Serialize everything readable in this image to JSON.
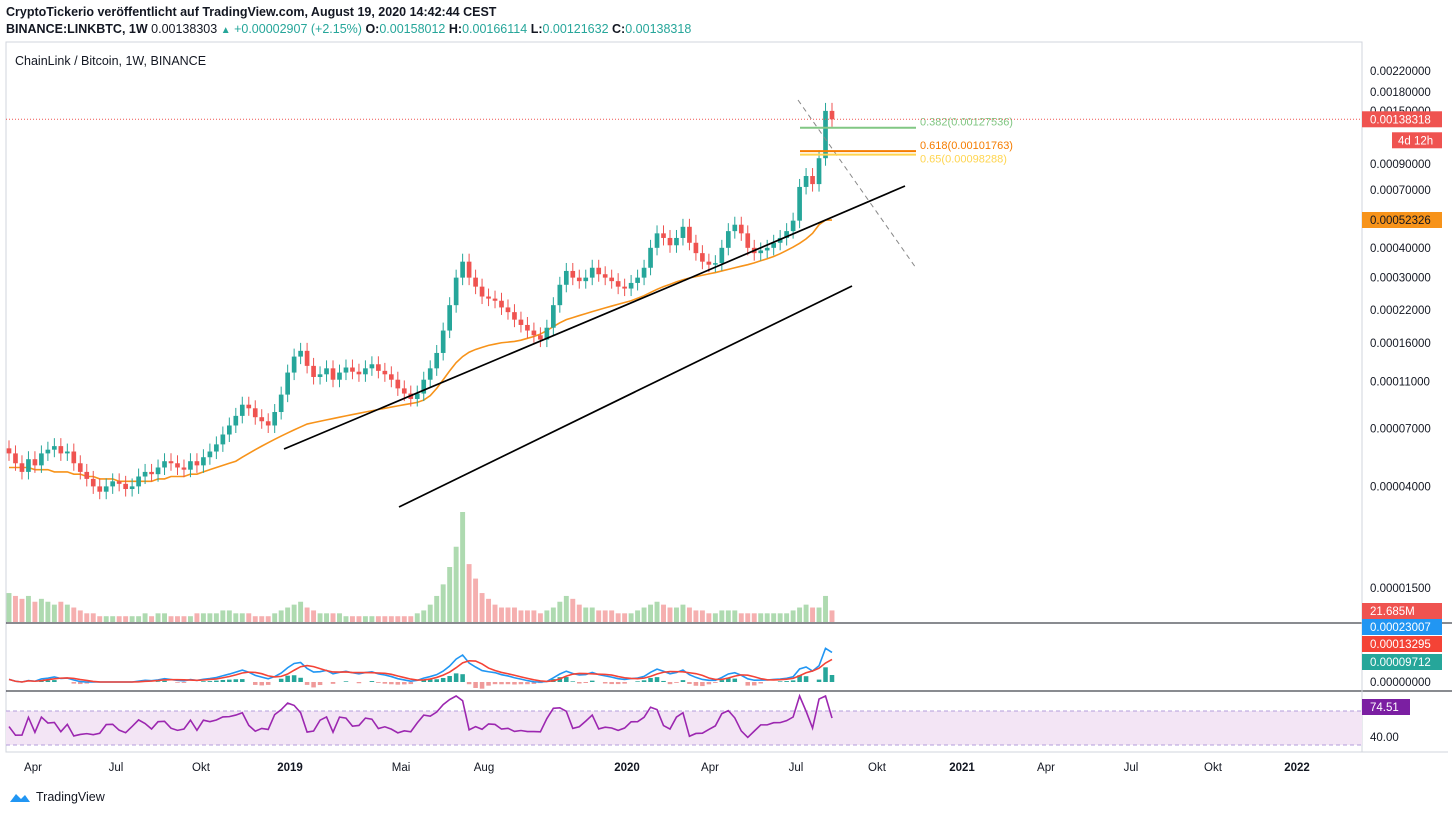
{
  "header": {
    "line1": "CryptoTickerio veröffentlicht auf TradingView.com, August 19, 2020 14:42:44 CEST",
    "symbol": "BINANCE:LINKBTC, 1W",
    "price": "0.00138303",
    "change": "+0.00002907 (+2.15%)",
    "o_label": "O:",
    "o": "0.00158012",
    "h_label": "H:",
    "h": "0.00166114",
    "l_label": "L:",
    "l": "0.00121632",
    "c_label": "C:",
    "c": "0.00138318"
  },
  "footer": {
    "brand": "TradingView"
  },
  "colors": {
    "up": "#26a69a",
    "down": "#ef5350",
    "ma": "#f7931a",
    "macd": "#2196f3",
    "signal": "#f44336",
    "rsi": "#9c27b0"
  },
  "chart_data": {
    "type": "candlestick",
    "title": "ChainLink / Bitcoin, 1W, BINANCE",
    "scale": "log",
    "price_ticks": [
      "0.00220000",
      "0.00180000",
      "0.00150000",
      "0.00090000",
      "0.00070000",
      "0.00040000",
      "0.00030000",
      "0.00022000",
      "0.00016000",
      "0.00011000",
      "0.00007000",
      "0.00004000",
      "0.00001500"
    ],
    "x_ticks": [
      "Apr",
      "Jul",
      "Okt",
      "2019",
      "Mai",
      "Aug",
      "2020",
      "Apr",
      "Jul",
      "Okt",
      "2021",
      "Apr",
      "Jul",
      "Okt",
      "2022"
    ],
    "last_price_label": "0.00138318",
    "countdown": "4d 12h",
    "ma_label": "0.00052326",
    "volume_label": "21.685M",
    "fib": [
      {
        "label": "0.382(0.00127536)",
        "value": 0.00127536,
        "color": "#81c784"
      },
      {
        "label": "0.618(0.00101763)",
        "value": 0.00101763,
        "color": "#f57c00"
      },
      {
        "label": "0.65(0.00098288)",
        "value": 0.00098288,
        "color": "#ffd54f"
      }
    ],
    "close": [
      5.5e-05,
      5e-05,
      4.6e-05,
      5.2e-05,
      4.9e-05,
      5.5e-05,
      5.7e-05,
      5.9e-05,
      5.5e-05,
      5.6e-05,
      5e-05,
      4.6e-05,
      4.3e-05,
      4e-05,
      3.8e-05,
      4e-05,
      4.2e-05,
      4.1e-05,
      3.9e-05,
      4e-05,
      4.4e-05,
      4.6e-05,
      4.5e-05,
      4.8e-05,
      5.1e-05,
      5e-05,
      4.8e-05,
      4.7e-05,
      5.1e-05,
      4.9e-05,
      5.3e-05,
      5.6e-05,
      6e-05,
      6.6e-05,
      7.2e-05,
      7.9e-05,
      8.8e-05,
      8.5e-05,
      7.8e-05,
      7.5e-05,
      7.2e-05,
      8.2e-05,
      9.7e-05,
      0.00012,
      0.00014,
      0.000148,
      0.000128,
      0.000115,
      0.000118,
      0.000125,
      0.000112,
      0.00012,
      0.000126,
      0.000121,
      0.000118,
      0.000125,
      0.00013,
      0.000122,
      0.000118,
      0.000112,
      0.000103,
      9.8e-05,
      9.3e-05,
      9.8e-05,
      0.000112,
      0.000125,
      0.000145,
      0.00018,
      0.00023,
      0.0003,
      0.00035,
      0.0003,
      0.000275,
      0.00025,
      0.000245,
      0.00024,
      0.000225,
      0.000215,
      0.0002,
      0.00019,
      0.00018,
      0.000172,
      0.000165,
      0.000185,
      0.00023,
      0.00028,
      0.00032,
      0.0003,
      0.00029,
      0.0003,
      0.00033,
      0.00031,
      0.0003,
      0.00029,
      0.000275,
      0.00027,
      0.000285,
      0.0003,
      0.00033,
      0.0004,
      0.00046,
      0.00044,
      0.00041,
      0.00044,
      0.00049,
      0.00042,
      0.00038,
      0.00035,
      0.00034,
      0.000345,
      0.0004,
      0.00047,
      0.0005,
      0.00046,
      0.0004,
      0.00038,
      0.00039,
      0.0004,
      0.00042,
      0.00044,
      0.00047,
      0.00052,
      0.00072,
      0.0008,
      0.00074,
      0.00095,
      0.0015,
      0.001383
    ],
    "ma": [
      4.8e-05,
      4.8e-05,
      4.8e-05,
      4.8e-05,
      4.7e-05,
      4.7e-05,
      4.7e-05,
      4.6e-05,
      4.6e-05,
      4.6e-05,
      4.5e-05,
      4.5e-05,
      4.4e-05,
      4.4e-05,
      4.3e-05,
      4.3e-05,
      4.3e-05,
      4.2e-05,
      4.2e-05,
      4.2e-05,
      4.2e-05,
      4.2e-05,
      4.2e-05,
      4.3e-05,
      4.3e-05,
      4.4e-05,
      4.4e-05,
      4.4e-05,
      4.5e-05,
      4.5e-05,
      4.6e-05,
      4.7e-05,
      4.8e-05,
      4.9e-05,
      5e-05,
      5.1e-05,
      5.3e-05,
      5.5e-05,
      5.7e-05,
      5.9e-05,
      6.1e-05,
      6.3e-05,
      6.5e-05,
      6.7e-05,
      6.9e-05,
      7.1e-05,
      7.3e-05,
      7.4e-05,
      7.5e-05,
      7.6e-05,
      7.7e-05,
      7.8e-05,
      7.9e-05,
      8e-05,
      8.1e-05,
      8.2e-05,
      8.3e-05,
      8.4e-05,
      8.5e-05,
      8.6e-05,
      8.7e-05,
      8.8e-05,
      8.9e-05,
      9e-05,
      9.2e-05,
      9.6e-05,
      0.000103,
      0.000112,
      0.000122,
      0.000132,
      0.00014,
      0.000146,
      0.00015,
      0.000153,
      0.000156,
      0.000158,
      0.00016,
      0.000161,
      0.000162,
      0.000164,
      0.000167,
      0.00017,
      0.000174,
      0.00018,
      0.000187,
      0.000194,
      0.0002,
      0.000204,
      0.000208,
      0.000212,
      0.000216,
      0.00022,
      0.000224,
      0.000228,
      0.000232,
      0.000236,
      0.00024,
      0.000246,
      0.000252,
      0.00026,
      0.000268,
      0.000275,
      0.000281,
      0.000288,
      0.000294,
      0.000299,
      0.000303,
      0.000307,
      0.000311,
      0.000315,
      0.00032,
      0.000325,
      0.00033,
      0.000335,
      0.00034,
      0.000346,
      0.000353,
      0.00036,
      0.000368,
      0.000378,
      0.00039,
      0.000403,
      0.000418,
      0.000436,
      0.00046,
      0.0005,
      0.000523,
      0.000523
    ],
    "volume": [
      10,
      9,
      8,
      9,
      7,
      8,
      7,
      6,
      7,
      6,
      5,
      4,
      3,
      3,
      2,
      2,
      2,
      2,
      2,
      2,
      2,
      3,
      2,
      3,
      3,
      2,
      2,
      2,
      2,
      3,
      3,
      3,
      3,
      4,
      4,
      3,
      3,
      3,
      2,
      2,
      2,
      3,
      4,
      5,
      6,
      7,
      5,
      4,
      3,
      3,
      3,
      3,
      2,
      2,
      2,
      2,
      2,
      2,
      2,
      2,
      2,
      2,
      2,
      3,
      4,
      6,
      9,
      13,
      19,
      26,
      38,
      20,
      15,
      10,
      8,
      6,
      5,
      5,
      5,
      4,
      4,
      4,
      3,
      4,
      5,
      7,
      9,
      8,
      6,
      5,
      5,
      4,
      4,
      4,
      3,
      3,
      3,
      4,
      5,
      6,
      7,
      6,
      5,
      5,
      6,
      5,
      4,
      4,
      3,
      3,
      4,
      4,
      4,
      3,
      3,
      3,
      3,
      3,
      3,
      3,
      3,
      4,
      5,
      6,
      5,
      5,
      9,
      4
    ],
    "macd_labels": [
      "0.00023007",
      "0.00013295",
      "0.00009712",
      "0.00000000"
    ],
    "rsi_label": "74.51",
    "rsi_level": "40.00"
  }
}
